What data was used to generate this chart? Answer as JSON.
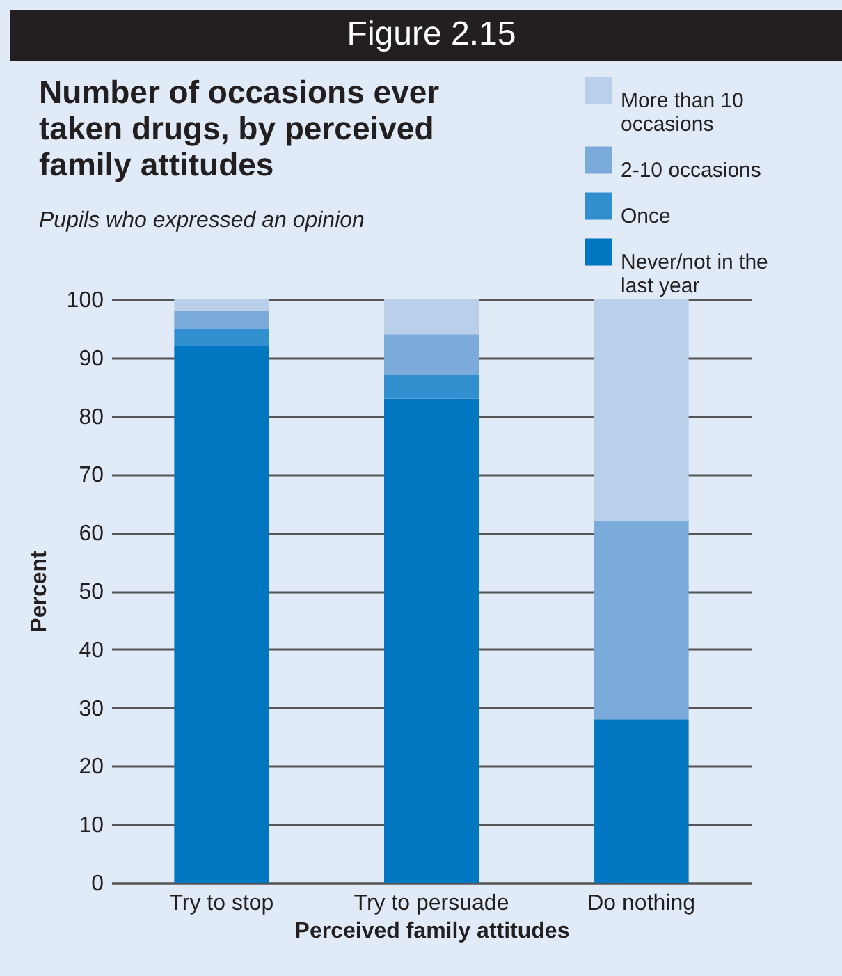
{
  "chart_data": {
    "type": "bar",
    "stacked": true,
    "annotations": [
      "Figure 2.15"
    ],
    "title": "Number of occasions ever taken drugs, by perceived family attitudes",
    "subtitle": "Pupils who expressed an opinion",
    "xlabel": "Perceived family attitudes",
    "ylabel": "Percent",
    "categories": [
      "Try to stop",
      "Try to persuade",
      "Do nothing"
    ],
    "series": [
      {
        "name": "Never/not in the last year",
        "color": "#0077c0",
        "values": [
          92,
          83,
          28
        ]
      },
      {
        "name": "Once",
        "color": "#318fcf",
        "values": [
          3,
          4,
          0
        ]
      },
      {
        "name": "2-10 occasions",
        "color": "#7aabdb",
        "values": [
          3,
          7,
          34
        ]
      },
      {
        "name": "More than 10 occasions",
        "color": "#b9cfea",
        "values": [
          2,
          6,
          38
        ]
      }
    ],
    "ylim": [
      0,
      100
    ],
    "yticks": [
      0,
      10,
      20,
      30,
      40,
      50,
      60,
      70,
      80,
      90,
      100
    ],
    "grid": "y",
    "legend": "top right"
  }
}
